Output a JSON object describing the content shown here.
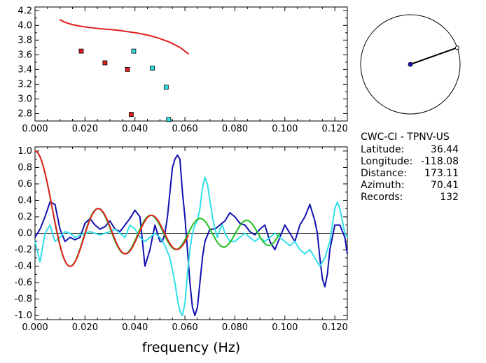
{
  "info": {
    "station": "CWC-CI - TPNV-US",
    "rows": [
      {
        "label": "Latitude:",
        "value": "36.44"
      },
      {
        "label": "Longitude:",
        "value": "-118.08"
      },
      {
        "label": "Distance:",
        "value": "173.11"
      },
      {
        "label": "Azimuth:",
        "value": "70.41"
      },
      {
        "label": "Records:",
        "value": "132"
      }
    ]
  },
  "azimuth_deg": 70.41,
  "colors": {
    "red": "#e02020",
    "cyan": "#30e0e8",
    "navy": "#1010b0",
    "green": "#20c020",
    "black": "#000000"
  },
  "chart_data": [
    {
      "type": "scatter",
      "xlim": [
        0.0,
        0.125
      ],
      "ylim": [
        2.7,
        4.25
      ],
      "xticks": [
        "0.000",
        "0.020",
        "0.040",
        "0.060",
        "0.080",
        "0.100",
        "0.120"
      ],
      "yticks": [
        "2.8",
        "3.0",
        "3.2",
        "3.4",
        "3.6",
        "3.8",
        "4.0",
        "4.2"
      ],
      "series": [
        {
          "type": "line",
          "color": "#e02020",
          "x": [
            0.0098,
            0.0115,
            0.013,
            0.015,
            0.018,
            0.022,
            0.026,
            0.03,
            0.034,
            0.038,
            0.042,
            0.046,
            0.05,
            0.054,
            0.058,
            0.0615
          ],
          "y": [
            4.08,
            4.05,
            4.03,
            4.01,
            3.99,
            3.97,
            3.955,
            3.945,
            3.93,
            3.91,
            3.89,
            3.86,
            3.82,
            3.77,
            3.7,
            3.61
          ]
        },
        {
          "type": "markers",
          "color": "#e02020",
          "x": [
            0.0185,
            0.028,
            0.037,
            0.0385
          ],
          "y": [
            3.65,
            3.49,
            3.4,
            2.79
          ]
        },
        {
          "type": "markers",
          "color": "#30e0e8",
          "x": [
            0.0395,
            0.047,
            0.0525,
            0.0535
          ],
          "y": [
            3.65,
            3.42,
            3.16,
            2.72
          ]
        }
      ]
    },
    {
      "type": "line",
      "xlabel": "frequency (Hz)",
      "xlim": [
        0.0,
        0.125
      ],
      "ylim": [
        -1.05,
        1.05
      ],
      "xticks": [
        "0.000",
        "0.020",
        "0.040",
        "0.060",
        "0.080",
        "0.100",
        "0.120"
      ],
      "yticks": [
        "1.0",
        "0.8",
        "0.6",
        "0.4",
        "0.2",
        "0.0",
        "-0.2",
        "-0.4",
        "-0.6",
        "-0.8",
        "-1.0"
      ],
      "series": [
        {
          "color": "#1010b0",
          "x": [
            0.0,
            0.002,
            0.004,
            0.006,
            0.008,
            0.01,
            0.012,
            0.014,
            0.016,
            0.018,
            0.02,
            0.022,
            0.024,
            0.026,
            0.028,
            0.03,
            0.032,
            0.034,
            0.036,
            0.038,
            0.04,
            0.042,
            0.043,
            0.044,
            0.046,
            0.048,
            0.05,
            0.051,
            0.052,
            0.053,
            0.054,
            0.055,
            0.056,
            0.057,
            0.058,
            0.059,
            0.06,
            0.061,
            0.062,
            0.063,
            0.064,
            0.065,
            0.066,
            0.067,
            0.068,
            0.07,
            0.072,
            0.074,
            0.076,
            0.078,
            0.08,
            0.082,
            0.084,
            0.086,
            0.088,
            0.09,
            0.092,
            0.094,
            0.096,
            0.098,
            0.1,
            0.102,
            0.104,
            0.106,
            0.108,
            0.11,
            0.112,
            0.113,
            0.114,
            0.115,
            0.116,
            0.117,
            0.118,
            0.12,
            0.122,
            0.124,
            0.125
          ],
          "y": [
            -0.05,
            0.05,
            0.2,
            0.38,
            0.35,
            0.05,
            -0.1,
            -0.05,
            -0.08,
            -0.05,
            0.12,
            0.18,
            0.1,
            0.05,
            0.08,
            0.15,
            0.05,
            0.02,
            0.1,
            0.18,
            0.28,
            0.2,
            -0.1,
            -0.4,
            -0.2,
            0.1,
            -0.1,
            -0.1,
            0.0,
            0.2,
            0.5,
            0.8,
            0.9,
            0.95,
            0.9,
            0.5,
            0.2,
            -0.2,
            -0.6,
            -0.9,
            -1.0,
            -0.9,
            -0.6,
            -0.3,
            -0.1,
            0.05,
            0.05,
            0.1,
            0.15,
            0.25,
            0.2,
            0.12,
            0.1,
            0.02,
            -0.02,
            0.05,
            0.1,
            -0.1,
            -0.2,
            -0.05,
            0.1,
            0.0,
            -0.1,
            0.1,
            0.2,
            0.35,
            0.15,
            0.0,
            -0.3,
            -0.55,
            -0.65,
            -0.5,
            -0.2,
            0.1,
            0.1,
            -0.05,
            -0.25
          ]
        },
        {
          "color": "#30e0e8",
          "x": [
            0.0,
            0.002,
            0.004,
            0.006,
            0.008,
            0.01,
            0.012,
            0.014,
            0.016,
            0.018,
            0.02,
            0.022,
            0.024,
            0.026,
            0.028,
            0.03,
            0.032,
            0.034,
            0.036,
            0.038,
            0.04,
            0.042,
            0.044,
            0.046,
            0.048,
            0.05,
            0.052,
            0.054,
            0.055,
            0.056,
            0.057,
            0.058,
            0.059,
            0.06,
            0.061,
            0.062,
            0.063,
            0.064,
            0.065,
            0.066,
            0.067,
            0.068,
            0.069,
            0.07,
            0.071,
            0.072,
            0.073,
            0.074,
            0.075,
            0.076,
            0.078,
            0.08,
            0.082,
            0.084,
            0.086,
            0.088,
            0.09,
            0.092,
            0.094,
            0.096,
            0.098,
            0.1,
            0.102,
            0.104,
            0.106,
            0.108,
            0.11,
            0.112,
            0.114,
            0.116,
            0.118,
            0.119,
            0.12,
            0.121,
            0.122,
            0.123,
            0.124,
            0.125
          ],
          "y": [
            -0.1,
            -0.35,
            0.0,
            0.1,
            -0.1,
            -0.05,
            0.02,
            0.0,
            -0.05,
            -0.02,
            0.0,
            0.02,
            0.0,
            -0.02,
            0.0,
            0.02,
            0.05,
            0.0,
            -0.05,
            0.1,
            0.05,
            -0.05,
            -0.1,
            -0.05,
            0.0,
            -0.05,
            -0.15,
            -0.3,
            -0.45,
            -0.6,
            -0.8,
            -0.95,
            -1.0,
            -0.85,
            -0.5,
            -0.2,
            0.0,
            0.1,
            0.15,
            0.3,
            0.55,
            0.68,
            0.6,
            0.4,
            0.2,
            0.05,
            -0.05,
            0.05,
            0.1,
            0.0,
            -0.1,
            -0.1,
            -0.05,
            0.0,
            -0.05,
            -0.1,
            -0.05,
            -0.1,
            -0.05,
            0.0,
            -0.05,
            -0.1,
            -0.15,
            -0.1,
            -0.2,
            -0.25,
            -0.2,
            -0.3,
            -0.4,
            -0.3,
            -0.1,
            0.1,
            0.3,
            0.38,
            0.3,
            0.15,
            0.0,
            -0.05
          ]
        }
      ]
    }
  ]
}
